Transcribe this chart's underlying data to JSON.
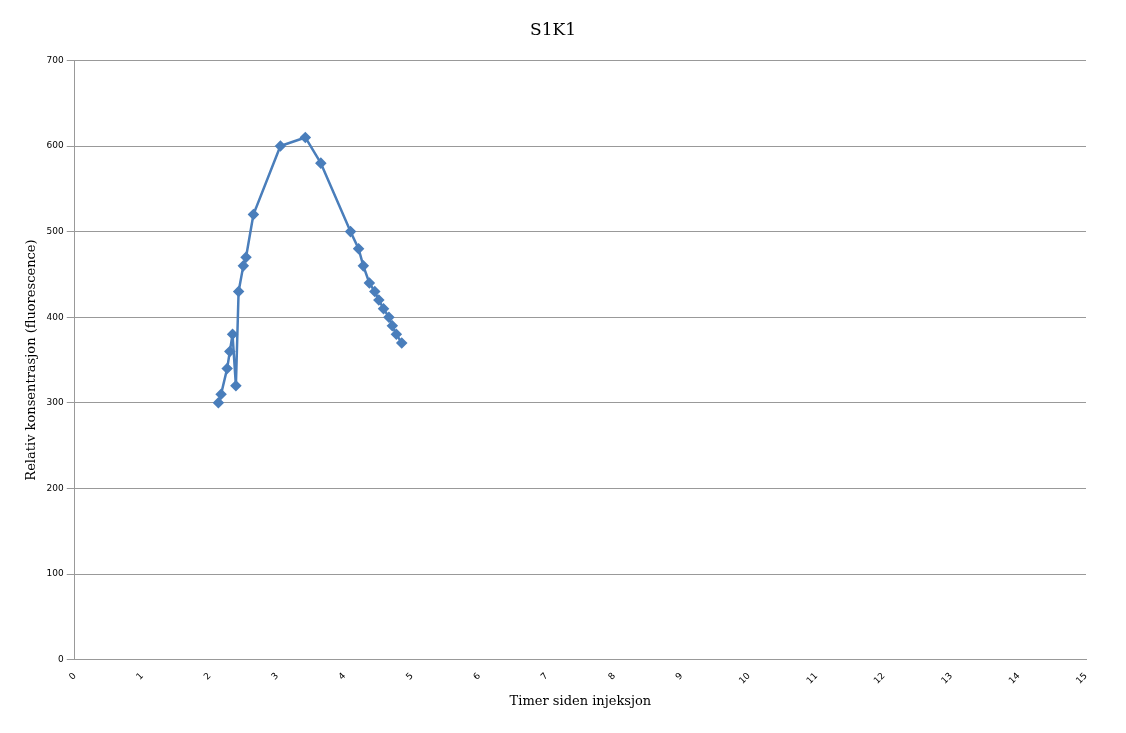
{
  "chart_data": {
    "type": "line",
    "title": "S1K1",
    "xlabel": "Timer siden injeksjon",
    "ylabel": "Relativ konsentrasjon (fluorescence)",
    "x": [
      2.13,
      2.17,
      2.26,
      2.3,
      2.34,
      2.39,
      2.43,
      2.5,
      2.54,
      2.65,
      3.05,
      3.42,
      3.65,
      4.09,
      4.21,
      4.28,
      4.37,
      4.45,
      4.51,
      4.58,
      4.66,
      4.71,
      4.77,
      4.85
    ],
    "series": [
      {
        "color": "#4a7ebb",
        "values": [
          300,
          310,
          340,
          360,
          380,
          320,
          430,
          460,
          470,
          520,
          600,
          610,
          580,
          500,
          480,
          460,
          440,
          430,
          420,
          410,
          400,
          390,
          380,
          370
        ]
      }
    ],
    "xlim": [
      0,
      15
    ],
    "xticks": [
      0,
      1,
      2,
      3,
      4,
      5,
      6,
      7,
      8,
      9,
      10,
      11,
      12,
      13,
      14,
      15
    ],
    "ylim": [
      0,
      700
    ],
    "yticks": [
      0,
      100,
      200,
      300,
      400,
      500,
      600,
      700
    ],
    "grid": "y",
    "legend": false,
    "marker": "diamond",
    "line_style": "solid"
  }
}
